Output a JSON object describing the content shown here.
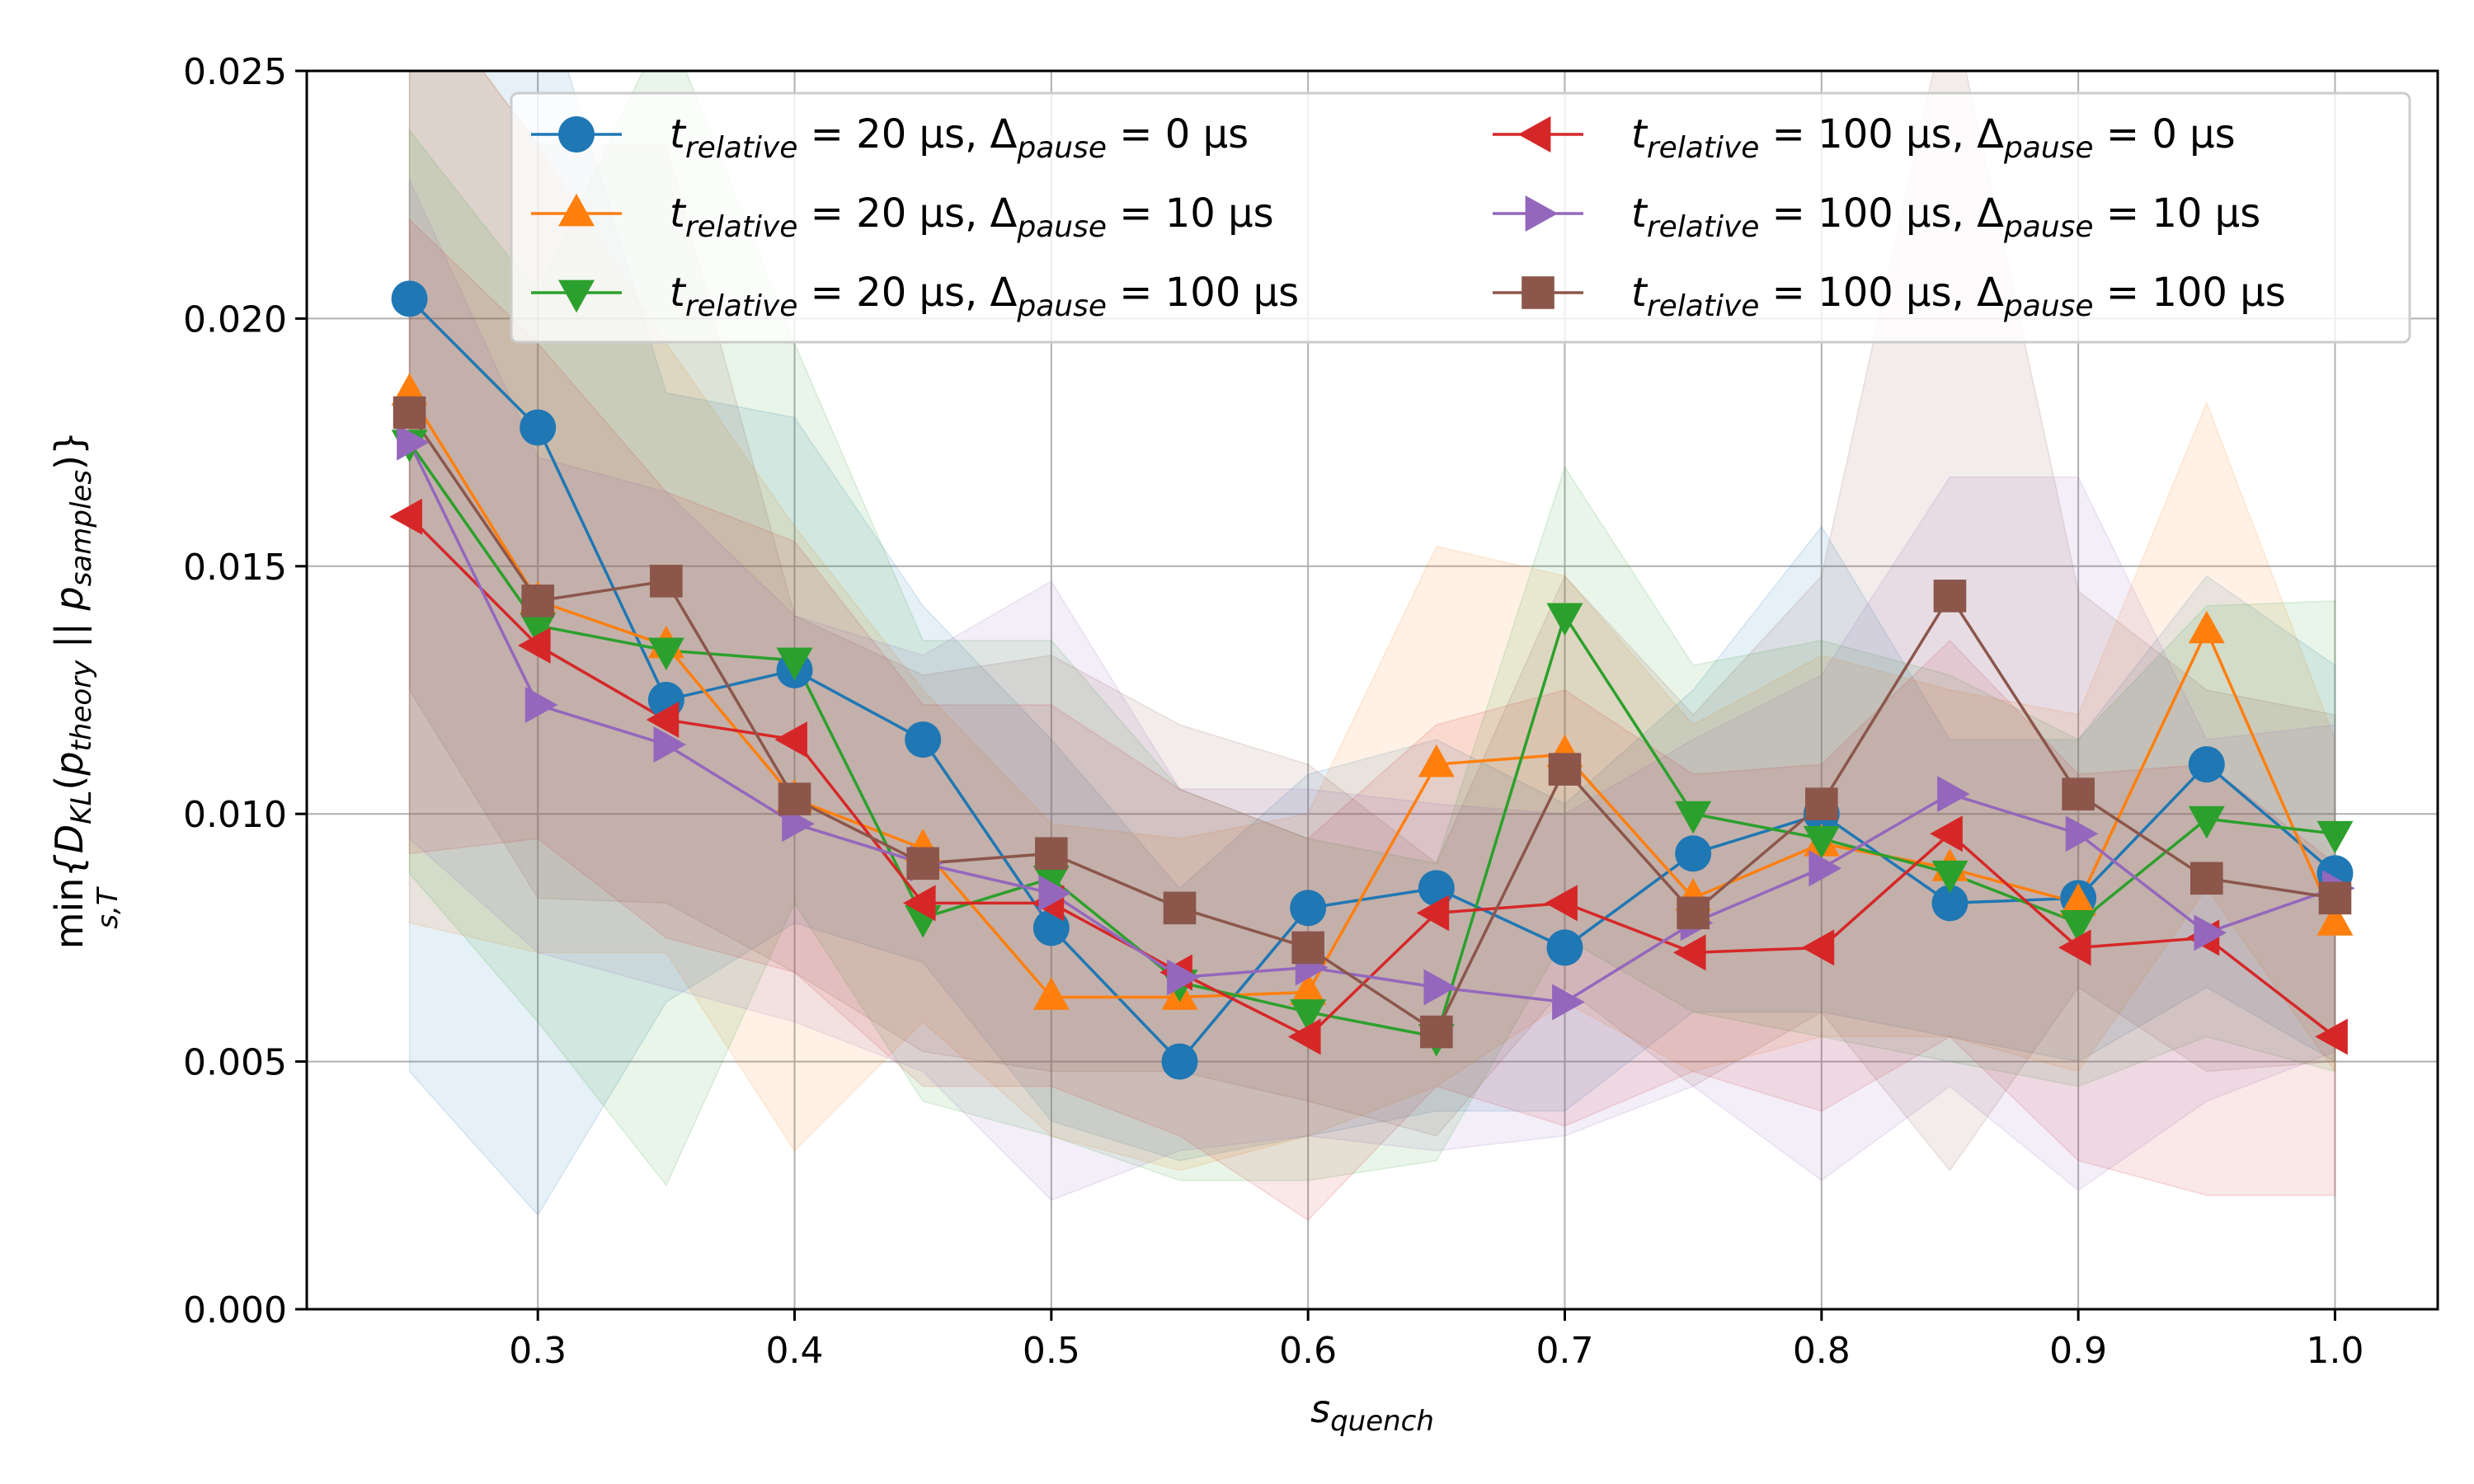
{
  "chart_data": {
    "type": "line",
    "title": "",
    "xlabel": "s_quench",
    "ylabel": "min_{s,T}{D_KL(p_theory || p_samples)}",
    "xlim": [
      0.21,
      1.04
    ],
    "ylim": [
      0.0,
      0.025
    ],
    "grid": true,
    "legend_position": "top-right",
    "x": [
      0.25,
      0.3,
      0.35,
      0.4,
      0.45,
      0.5,
      0.55,
      0.6,
      0.65,
      0.7,
      0.75,
      0.8,
      0.85,
      0.9,
      0.95,
      1.0
    ],
    "x_ticks": [
      0.3,
      0.4,
      0.5,
      0.6,
      0.7,
      0.8,
      0.9,
      1.0
    ],
    "x_tick_labels": [
      "0.3",
      "0.4",
      "0.5",
      "0.6",
      "0.7",
      "0.8",
      "0.9",
      "1.0"
    ],
    "y_ticks": [
      0.0,
      0.005,
      0.01,
      0.015,
      0.02,
      0.025
    ],
    "y_tick_labels": [
      "0.000",
      "0.005",
      "0.010",
      "0.015",
      "0.020",
      "0.025"
    ],
    "series": [
      {
        "name": "t_relative = 20 μs, Δ_pause = 0 μs",
        "legend": {
          "t": "20 μs",
          "d": "0 μs"
        },
        "color": "#1f77b4",
        "marker": "circle",
        "values": [
          0.0204,
          0.0178,
          0.0123,
          0.0129,
          0.0115,
          0.0077,
          0.005,
          0.0081,
          0.0085,
          0.0073,
          0.0092,
          0.01,
          0.0082,
          0.0083,
          0.011,
          0.0088
        ],
        "lower": [
          0.0048,
          0.0019,
          0.0062,
          0.0078,
          0.007,
          0.0038,
          0.003,
          0.0035,
          0.004,
          0.004,
          0.006,
          0.006,
          0.0055,
          0.005,
          0.0065,
          0.005
        ],
        "upper": [
          0.027,
          0.027,
          0.0185,
          0.018,
          0.0142,
          0.0115,
          0.0085,
          0.0108,
          0.0115,
          0.0102,
          0.0125,
          0.0158,
          0.0115,
          0.0115,
          0.0148,
          0.013
        ]
      },
      {
        "name": "t_relative = 20 μs, Δ_pause = 10 μs",
        "legend": {
          "t": "20 μs",
          "d": "10 μs"
        },
        "color": "#ff7f0e",
        "marker": "triangle-up",
        "values": [
          0.0185,
          0.0143,
          0.0134,
          0.0103,
          0.0093,
          0.0063,
          0.0063,
          0.0064,
          0.011,
          0.0112,
          0.0083,
          0.0094,
          0.0089,
          0.0082,
          0.0137,
          0.0078
        ],
        "lower": [
          0.0078,
          0.0072,
          0.0072,
          0.0032,
          0.0058,
          0.0035,
          0.0028,
          0.0035,
          0.0045,
          0.0062,
          0.0048,
          0.0055,
          0.0055,
          0.0048,
          0.0085,
          0.0048
        ],
        "upper": [
          0.027,
          0.0235,
          0.0195,
          0.0158,
          0.0125,
          0.0098,
          0.0095,
          0.01,
          0.0154,
          0.0148,
          0.0118,
          0.0132,
          0.0125,
          0.012,
          0.0183,
          0.0115
        ]
      },
      {
        "name": "t_relative = 20 μs, Δ_pause = 100 μs",
        "legend": {
          "t": "20 μs",
          "d": "100 μs"
        },
        "color": "#2ca02c",
        "marker": "triangle-down",
        "values": [
          0.0175,
          0.0138,
          0.0133,
          0.0131,
          0.0079,
          0.0087,
          0.0066,
          0.006,
          0.0055,
          0.014,
          0.01,
          0.0095,
          0.0088,
          0.0078,
          0.0099,
          0.0096
        ],
        "lower": [
          0.0088,
          0.0058,
          0.0025,
          0.0082,
          0.0042,
          0.0035,
          0.0026,
          0.0026,
          0.003,
          0.0075,
          0.006,
          0.0055,
          0.005,
          0.0045,
          0.0055,
          0.0048
        ],
        "upper": [
          0.0238,
          0.0205,
          0.026,
          0.0195,
          0.0135,
          0.0135,
          0.0105,
          0.0095,
          0.009,
          0.017,
          0.013,
          0.0135,
          0.0128,
          0.0115,
          0.0142,
          0.0143
        ]
      },
      {
        "name": "t_relative = 100 μs, Δ_pause = 0 μs",
        "legend": {
          "t": "100 μs",
          "d": "0 μs"
        },
        "color": "#d62728",
        "marker": "triangle-left",
        "values": [
          0.016,
          0.0134,
          0.0119,
          0.0115,
          0.0082,
          0.0082,
          0.0068,
          0.0055,
          0.008,
          0.0082,
          0.0072,
          0.0073,
          0.0096,
          0.0073,
          0.0075,
          0.0055
        ],
        "lower": [
          0.0092,
          0.0095,
          0.0075,
          0.0068,
          0.0045,
          0.0045,
          0.0035,
          0.0018,
          0.0045,
          0.0037,
          0.0048,
          0.004,
          0.0055,
          0.003,
          0.0023,
          0.0023
        ],
        "upper": [
          0.022,
          0.0195,
          0.0165,
          0.0155,
          0.0122,
          0.0122,
          0.0105,
          0.0095,
          0.0118,
          0.0125,
          0.0108,
          0.011,
          0.0135,
          0.0108,
          0.011,
          0.009
        ]
      },
      {
        "name": "t_relative = 100 μs, Δ_pause = 10 μs",
        "legend": {
          "t": "100 μs",
          "d": "10 μs"
        },
        "color": "#9467bd",
        "marker": "triangle-right",
        "values": [
          0.0175,
          0.0122,
          0.0114,
          0.0098,
          0.009,
          0.0084,
          0.0067,
          0.0069,
          0.0065,
          0.0062,
          0.0078,
          0.0089,
          0.0104,
          0.0096,
          0.0076,
          0.0085
        ],
        "lower": [
          0.0095,
          0.0072,
          0.0065,
          0.0058,
          0.0048,
          0.0022,
          0.0032,
          0.0035,
          0.0032,
          0.0035,
          0.0045,
          0.0026,
          0.0045,
          0.0024,
          0.0042,
          0.0052
        ],
        "upper": [
          0.0228,
          0.0172,
          0.0165,
          0.014,
          0.0132,
          0.0147,
          0.0105,
          0.0105,
          0.0102,
          0.01,
          0.0115,
          0.0128,
          0.0168,
          0.0168,
          0.0115,
          0.0118
        ]
      },
      {
        "name": "t_relative = 100 μs, Δ_pause = 100 μs",
        "legend": {
          "t": "100 μs",
          "d": "100 μs"
        },
        "color": "#8c564b",
        "marker": "square",
        "values": [
          0.0181,
          0.0143,
          0.0147,
          0.0103,
          0.009,
          0.0092,
          0.0081,
          0.0073,
          0.0056,
          0.0109,
          0.008,
          0.0102,
          0.0144,
          0.0104,
          0.0087,
          0.0083
        ],
        "lower": [
          0.0125,
          0.0083,
          0.0082,
          0.0068,
          0.0052,
          0.0048,
          0.0048,
          0.0042,
          0.0035,
          0.0065,
          0.0045,
          0.006,
          0.0028,
          0.0065,
          0.0048,
          0.005
        ],
        "upper": [
          0.027,
          0.0235,
          0.0235,
          0.014,
          0.0128,
          0.0132,
          0.0118,
          0.011,
          0.009,
          0.0148,
          0.012,
          0.0148,
          0.0265,
          0.0145,
          0.0125,
          0.012
        ]
      }
    ]
  }
}
